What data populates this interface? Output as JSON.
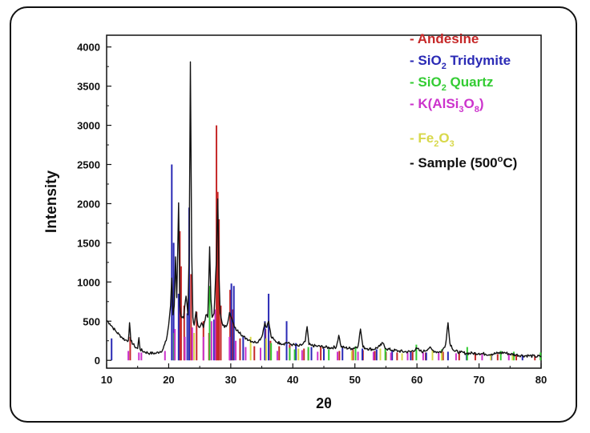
{
  "chart_data": {
    "type": "line",
    "title": "",
    "xlabel": "2θ",
    "ylabel": "Intensity",
    "xlim": [
      10,
      80
    ],
    "ylim": [
      -100,
      4150
    ],
    "xticks": [
      "10",
      "20",
      "30",
      "40",
      "50",
      "60",
      "70",
      "80"
    ],
    "yticks": [
      "0",
      "500",
      "1000",
      "1500",
      "2000",
      "2500",
      "3000",
      "3500",
      "4000"
    ],
    "legend": {
      "placement": "top-right",
      "entries": [
        {
          "dash": "- ",
          "name": "Andesine",
          "color": "#c62828"
        },
        {
          "dash": "- ",
          "name": "SiO",
          "sub": "2",
          "rest": " Tridymite",
          "color": "#2a2ab5"
        },
        {
          "dash": "- ",
          "name": "SiO",
          "sub": "2",
          "rest": " Quartz",
          "color": "#33cc33"
        },
        {
          "dash": "- ",
          "name": "K(AlSi",
          "sub": "3",
          "mid": "O",
          "sub2": "8",
          "rest": ")",
          "color": "#cc33cc"
        },
        {
          "dash": "- ",
          "name": "Fe",
          "sub": "2",
          "mid": "O",
          "sub2": "3",
          "rest": "",
          "color": "#d8d84a"
        },
        {
          "dash": "- ",
          "name": "Sample (500",
          "sup": "o",
          "rest": "C)",
          "color": "#111111"
        }
      ]
    },
    "series": [
      {
        "name": "Andesine",
        "color": "#c62828",
        "type": "stick",
        "points": [
          [
            13.8,
            300
          ],
          [
            21.8,
            1650
          ],
          [
            22.0,
            1200
          ],
          [
            22.5,
            700
          ],
          [
            23.6,
            1100
          ],
          [
            24.5,
            620
          ],
          [
            25.6,
            500
          ],
          [
            26.5,
            350
          ],
          [
            27.7,
            3000
          ],
          [
            27.9,
            2150
          ],
          [
            28.1,
            1800
          ],
          [
            28.4,
            700
          ],
          [
            29.9,
            900
          ],
          [
            30.3,
            650
          ],
          [
            31.5,
            280
          ],
          [
            33.8,
            180
          ],
          [
            35.6,
            400
          ],
          [
            36.4,
            250
          ],
          [
            37.8,
            180
          ],
          [
            39.5,
            200
          ],
          [
            41.8,
            150
          ],
          [
            42.5,
            140
          ],
          [
            44.5,
            180
          ],
          [
            47.5,
            120
          ],
          [
            49.7,
            140
          ],
          [
            51.3,
            130
          ],
          [
            53.2,
            120
          ],
          [
            55.0,
            110
          ],
          [
            56.8,
            100
          ],
          [
            59.3,
            110
          ],
          [
            61.4,
            100
          ],
          [
            64.2,
            110
          ],
          [
            66.8,
            100
          ],
          [
            69.4,
            90
          ],
          [
            73.0,
            80
          ],
          [
            76.0,
            70
          ],
          [
            79.0,
            60
          ]
        ]
      },
      {
        "name": "SiO2 Tridymite",
        "color": "#2a2ab5",
        "type": "stick",
        "points": [
          [
            10.8,
            280
          ],
          [
            20.5,
            2500
          ],
          [
            20.8,
            1500
          ],
          [
            21.6,
            850
          ],
          [
            23.0,
            600
          ],
          [
            23.3,
            1950
          ],
          [
            27.3,
            520
          ],
          [
            30.1,
            980
          ],
          [
            30.5,
            950
          ],
          [
            32.0,
            300
          ],
          [
            35.5,
            500
          ],
          [
            36.1,
            850
          ],
          [
            39.0,
            500
          ],
          [
            40.5,
            220
          ],
          [
            43.0,
            170
          ],
          [
            45.0,
            150
          ],
          [
            48.0,
            160
          ],
          [
            51.2,
            150
          ],
          [
            53.5,
            140
          ],
          [
            56.0,
            120
          ],
          [
            59.0,
            110
          ],
          [
            61.5,
            100
          ],
          [
            65.0,
            110
          ],
          [
            68.0,
            90
          ],
          [
            72.0,
            80
          ],
          [
            77.0,
            70
          ]
        ]
      },
      {
        "name": "SiO2 Quartz",
        "color": "#33cc33",
        "type": "stick",
        "points": [
          [
            20.9,
            350
          ],
          [
            26.6,
            950
          ],
          [
            36.5,
            220
          ],
          [
            39.5,
            160
          ],
          [
            40.3,
            140
          ],
          [
            42.5,
            170
          ],
          [
            45.8,
            140
          ],
          [
            50.1,
            180
          ],
          [
            54.9,
            150
          ],
          [
            59.9,
            200
          ],
          [
            64.0,
            140
          ],
          [
            68.1,
            170
          ],
          [
            73.5,
            120
          ],
          [
            75.6,
            110
          ],
          [
            79.9,
            100
          ]
        ]
      },
      {
        "name": "K(AlSi3O8)",
        "color": "#cc33cc",
        "type": "stick",
        "points": [
          [
            13.5,
            120
          ],
          [
            15.2,
            100
          ],
          [
            15.6,
            100
          ],
          [
            19.4,
            120
          ],
          [
            21.0,
            400
          ],
          [
            22.6,
            300
          ],
          [
            23.8,
            420
          ],
          [
            25.6,
            300
          ],
          [
            26.9,
            500
          ],
          [
            27.5,
            650
          ],
          [
            29.8,
            300
          ],
          [
            30.8,
            250
          ],
          [
            32.4,
            170
          ],
          [
            34.8,
            160
          ],
          [
            37.5,
            120
          ],
          [
            41.5,
            130
          ],
          [
            44.0,
            110
          ],
          [
            47.2,
            110
          ],
          [
            50.5,
            110
          ],
          [
            53.0,
            110
          ],
          [
            55.8,
            100
          ],
          [
            58.5,
            100
          ],
          [
            61.0,
            100
          ],
          [
            63.5,
            100
          ],
          [
            66.3,
            90
          ],
          [
            70.5,
            80
          ],
          [
            74.8,
            80
          ]
        ]
      },
      {
        "name": "Fe2O3",
        "color": "#d8d84a",
        "type": "stick",
        "points": [
          [
            24.1,
            350
          ],
          [
            33.2,
            300
          ],
          [
            35.7,
            280
          ],
          [
            40.9,
            150
          ],
          [
            49.5,
            120
          ],
          [
            54.1,
            150
          ],
          [
            57.6,
            90
          ],
          [
            62.5,
            130
          ],
          [
            64.0,
            120
          ],
          [
            71.9,
            80
          ],
          [
            75.4,
            70
          ]
        ]
      },
      {
        "name": "Sample (500°C)",
        "color": "#111111",
        "type": "line",
        "points": [
          [
            10.0,
            510
          ],
          [
            10.5,
            470
          ],
          [
            11.0,
            420
          ],
          [
            11.5,
            370
          ],
          [
            12.0,
            330
          ],
          [
            12.5,
            290
          ],
          [
            13.0,
            260
          ],
          [
            13.5,
            250
          ],
          [
            13.7,
            480
          ],
          [
            13.9,
            250
          ],
          [
            14.5,
            180
          ],
          [
            15.0,
            150
          ],
          [
            15.2,
            290
          ],
          [
            15.4,
            140
          ],
          [
            16.0,
            110
          ],
          [
            17.0,
            90
          ],
          [
            18.0,
            90
          ],
          [
            19.0,
            130
          ],
          [
            19.6,
            250
          ],
          [
            20.0,
            450
          ],
          [
            20.3,
            700
          ],
          [
            20.5,
            1050
          ],
          [
            20.7,
            580
          ],
          [
            20.9,
            700
          ],
          [
            21.1,
            1320
          ],
          [
            21.3,
            800
          ],
          [
            21.6,
            2010
          ],
          [
            21.8,
            700
          ],
          [
            22.0,
            560
          ],
          [
            22.4,
            540
          ],
          [
            22.8,
            820
          ],
          [
            23.1,
            580
          ],
          [
            23.3,
            1380
          ],
          [
            23.5,
            3810
          ],
          [
            23.7,
            1400
          ],
          [
            23.9,
            550
          ],
          [
            24.1,
            450
          ],
          [
            24.4,
            620
          ],
          [
            24.7,
            450
          ],
          [
            25.0,
            420
          ],
          [
            25.3,
            480
          ],
          [
            25.6,
            420
          ],
          [
            26.0,
            580
          ],
          [
            26.3,
            550
          ],
          [
            26.6,
            1450
          ],
          [
            26.8,
            780
          ],
          [
            27.0,
            550
          ],
          [
            27.3,
            600
          ],
          [
            27.7,
            1280
          ],
          [
            27.9,
            2060
          ],
          [
            28.1,
            1100
          ],
          [
            28.3,
            600
          ],
          [
            28.6,
            480
          ],
          [
            29.0,
            420
          ],
          [
            29.4,
            450
          ],
          [
            29.8,
            610
          ],
          [
            30.0,
            560
          ],
          [
            30.3,
            500
          ],
          [
            30.6,
            420
          ],
          [
            31.0,
            380
          ],
          [
            31.5,
            360
          ],
          [
            32.0,
            300
          ],
          [
            32.5,
            280
          ],
          [
            33.0,
            260
          ],
          [
            33.5,
            240
          ],
          [
            34.0,
            230
          ],
          [
            34.5,
            250
          ],
          [
            35.0,
            300
          ],
          [
            35.5,
            480
          ],
          [
            35.8,
            420
          ],
          [
            36.1,
            500
          ],
          [
            36.5,
            300
          ],
          [
            37.0,
            260
          ],
          [
            37.5,
            230
          ],
          [
            38.0,
            220
          ],
          [
            38.5,
            210
          ],
          [
            39.0,
            230
          ],
          [
            39.5,
            210
          ],
          [
            40.0,
            200
          ],
          [
            40.5,
            190
          ],
          [
            41.0,
            180
          ],
          [
            41.5,
            200
          ],
          [
            42.0,
            240
          ],
          [
            42.3,
            430
          ],
          [
            42.6,
            200
          ],
          [
            43.0,
            190
          ],
          [
            44.0,
            180
          ],
          [
            45.0,
            170
          ],
          [
            46.0,
            160
          ],
          [
            47.0,
            170
          ],
          [
            47.4,
            320
          ],
          [
            47.8,
            170
          ],
          [
            48.5,
            160
          ],
          [
            49.5,
            150
          ],
          [
            50.5,
            180
          ],
          [
            50.9,
            400
          ],
          [
            51.3,
            170
          ],
          [
            52.0,
            150
          ],
          [
            53.0,
            140
          ],
          [
            54.0,
            180
          ],
          [
            54.5,
            220
          ],
          [
            55.0,
            150
          ],
          [
            56.0,
            130
          ],
          [
            57.0,
            120
          ],
          [
            58.0,
            110
          ],
          [
            59.0,
            110
          ],
          [
            60.0,
            150
          ],
          [
            60.5,
            120
          ],
          [
            61.0,
            110
          ],
          [
            62.0,
            160
          ],
          [
            62.5,
            130
          ],
          [
            63.0,
            110
          ],
          [
            64.0,
            110
          ],
          [
            64.6,
            200
          ],
          [
            65.0,
            480
          ],
          [
            65.3,
            220
          ],
          [
            66.0,
            120
          ],
          [
            67.0,
            100
          ],
          [
            68.0,
            90
          ],
          [
            69.0,
            90
          ],
          [
            70.0,
            90
          ],
          [
            71.0,
            80
          ],
          [
            72.0,
            80
          ],
          [
            73.0,
            90
          ],
          [
            74.0,
            100
          ],
          [
            75.0,
            80
          ],
          [
            76.0,
            70
          ],
          [
            77.0,
            60
          ],
          [
            78.0,
            60
          ],
          [
            79.0,
            50
          ],
          [
            80.0,
            50
          ]
        ]
      }
    ]
  }
}
